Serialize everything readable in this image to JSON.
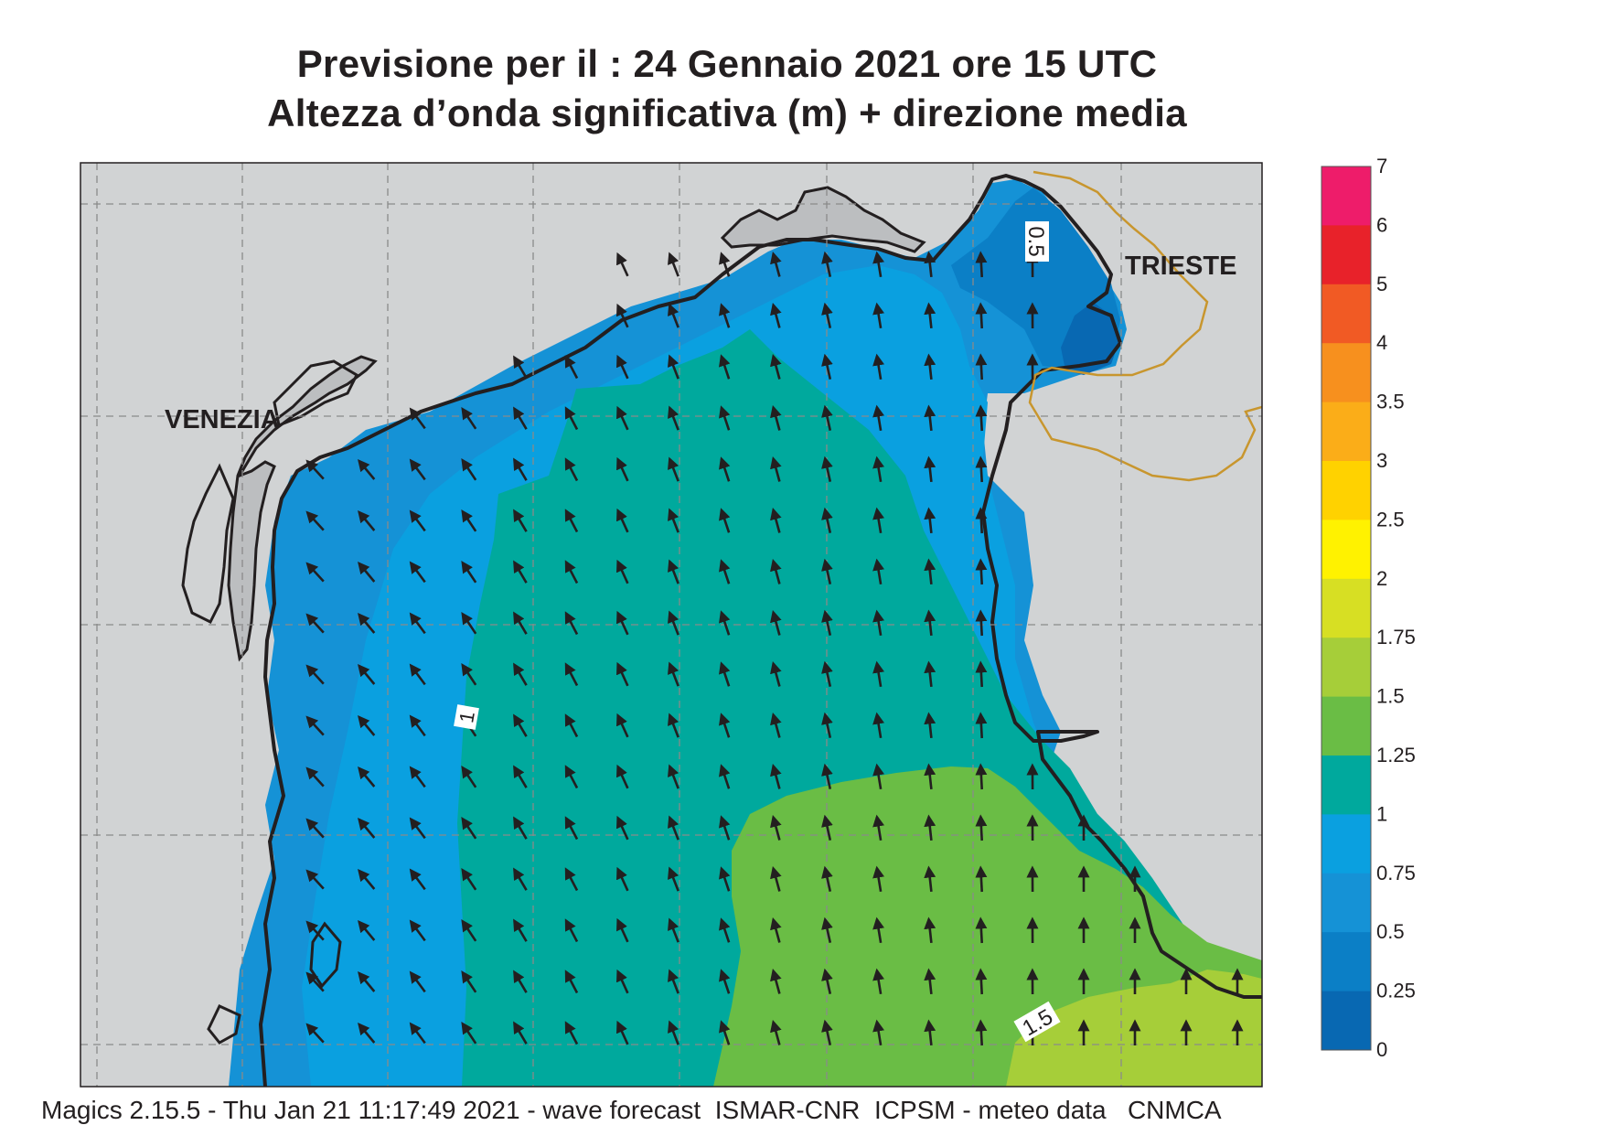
{
  "title": {
    "line1": "Previsione per il  :  24  Gennaio  2021   ore 15 UTC",
    "line2": "Altezza d’onda significativa (m) + direzione media"
  },
  "labels": {
    "venezia": "VENEZIA",
    "trieste": "TRIESTE"
  },
  "contour_labels": [
    "0.5",
    "1",
    "1.5"
  ],
  "colorbar": {
    "ticks": [
      "7",
      "6",
      "5",
      "4",
      "3.5",
      "3",
      "2.5",
      "2",
      "1.75",
      "1.5",
      "1.25",
      "1",
      "0.75",
      "0.5",
      "0.25",
      "0"
    ],
    "bins": [
      {
        "from": "6",
        "to": "7",
        "color": "#ee1c6a"
      },
      {
        "from": "5",
        "to": "6",
        "color": "#e8222a"
      },
      {
        "from": "4",
        "to": "5",
        "color": "#f15a24"
      },
      {
        "from": "3.5",
        "to": "4",
        "color": "#f7901e"
      },
      {
        "from": "3",
        "to": "3.5",
        "color": "#fbad18"
      },
      {
        "from": "2.5",
        "to": "3",
        "color": "#ffd200"
      },
      {
        "from": "2",
        "to": "2.5",
        "color": "#fff200"
      },
      {
        "from": "1.75",
        "to": "2",
        "color": "#d7df23"
      },
      {
        "from": "1.5",
        "to": "1.75",
        "color": "#a6ce39"
      },
      {
        "from": "1.25",
        "to": "1.5",
        "color": "#6abd45"
      },
      {
        "from": "1",
        "to": "1.25",
        "color": "#00a99d"
      },
      {
        "from": "0.75",
        "to": "1",
        "color": "#0aa0e0"
      },
      {
        "from": "0.5",
        "to": "0.75",
        "color": "#1592d6"
      },
      {
        "from": "0.25",
        "to": "0.5",
        "color": "#0b7fc6"
      },
      {
        "from": "0",
        "to": "0.25",
        "color": "#0868b2"
      }
    ]
  },
  "colors": {
    "land": "#d1d3d4",
    "land_dark": "#bcbec0",
    "coast": "#231f20",
    "border": "#c8962e",
    "grid": "#8a8a8a"
  },
  "footer": "Magics 2.15.5 - Thu Jan 21 11:17:49 2021 - wave forecast  ISMAR-CNR  ICPSM - meteo data   CNMCA"
}
